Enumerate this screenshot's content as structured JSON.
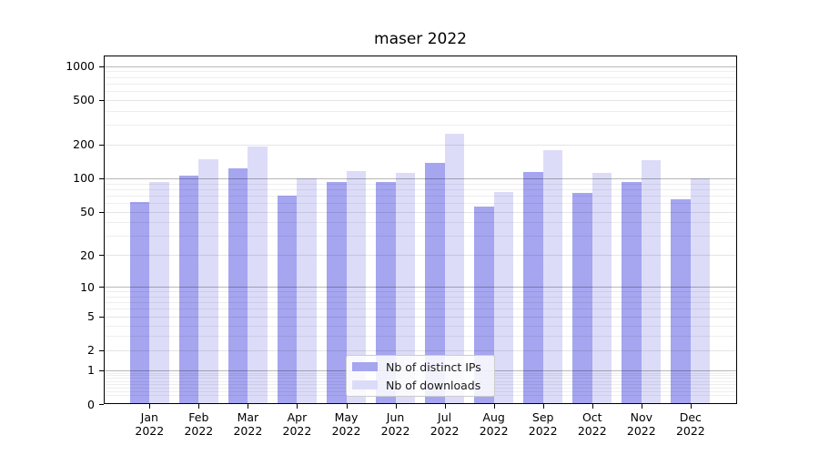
{
  "chart_data": {
    "type": "bar",
    "title": "maser 2022",
    "categories": [
      "Jan",
      "Feb",
      "Mar",
      "Apr",
      "May",
      "Jun",
      "Jul",
      "Aug",
      "Sep",
      "Oct",
      "Nov",
      "Dec"
    ],
    "category_year": "2022",
    "series": [
      {
        "name": "Nb of distinct IPs",
        "color": "#a5a5f0",
        "values": [
          61,
          106,
          123,
          70,
          93,
          92,
          138,
          56,
          113,
          74,
          93,
          65
        ]
      },
      {
        "name": "Nb of downloads",
        "color": "#dcdcf8",
        "values": [
          93,
          149,
          193,
          100,
          116,
          112,
          251,
          76,
          179,
          112,
          145,
          100
        ]
      }
    ],
    "yscale": "log1p",
    "yticks": [
      0,
      1,
      2,
      5,
      10,
      20,
      50,
      100,
      200,
      500,
      1000
    ],
    "ylim": [
      0,
      1245
    ],
    "xlabel": "",
    "ylabel": "",
    "grid": true,
    "legend_position": "lower center"
  }
}
